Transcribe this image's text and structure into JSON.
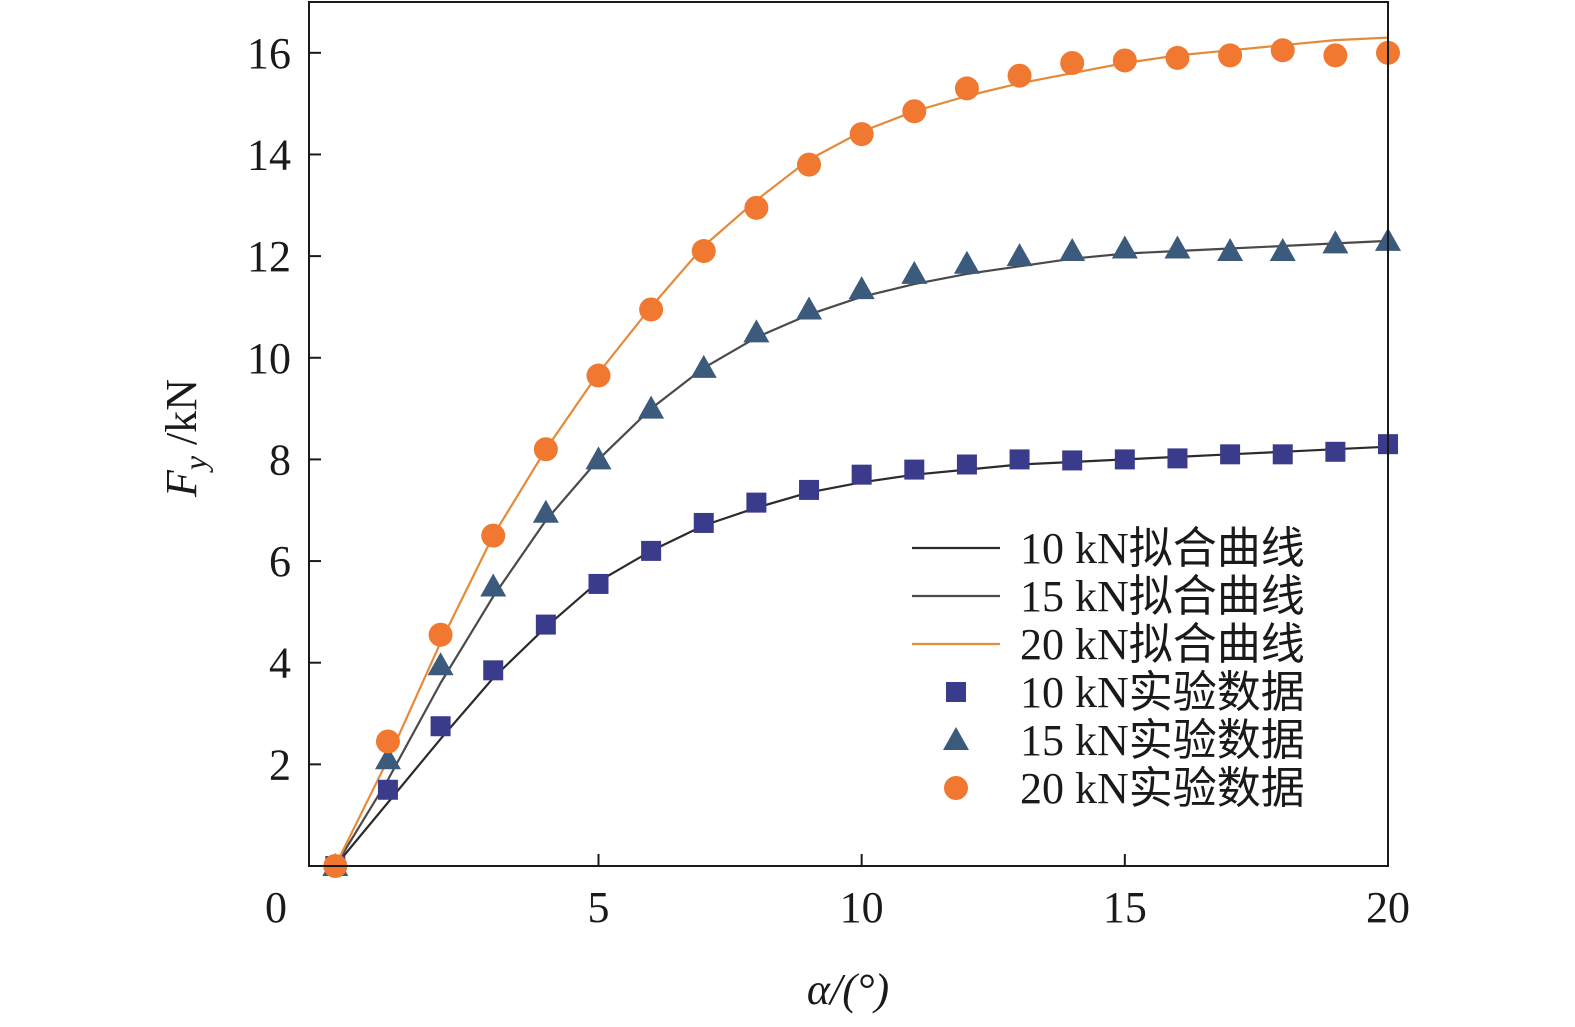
{
  "chart_data": {
    "type": "line",
    "xlabel": "α/(°)",
    "ylabel": {
      "main": "F",
      "sub": "y",
      "unit": " /kN"
    },
    "xlim": [
      0,
      20
    ],
    "ylim": [
      0,
      17
    ],
    "xticks": [
      0,
      5,
      10,
      15,
      20
    ],
    "yticks": [
      2,
      4,
      6,
      8,
      10,
      12,
      14,
      16
    ],
    "x_origin_label": "0",
    "grid": false,
    "legend_position": "bottom-right",
    "x": [
      0,
      1,
      2,
      3,
      4,
      5,
      6,
      7,
      8,
      9,
      10,
      11,
      12,
      13,
      14,
      15,
      16,
      17,
      18,
      19,
      20
    ],
    "series": [
      {
        "name": "10 kN拟合曲线",
        "kind": "line",
        "color": "#2b2b2b",
        "values": [
          0,
          1.25,
          2.5,
          3.7,
          4.7,
          5.6,
          6.2,
          6.7,
          7.05,
          7.35,
          7.55,
          7.7,
          7.8,
          7.9,
          7.95,
          8.0,
          8.05,
          8.1,
          8.15,
          8.2,
          8.25
        ]
      },
      {
        "name": "15 kN拟合曲线",
        "kind": "line",
        "color": "#4a4a4a",
        "values": [
          0,
          1.7,
          3.6,
          5.3,
          6.8,
          8.0,
          9.0,
          9.8,
          10.4,
          10.85,
          11.2,
          11.45,
          11.65,
          11.8,
          11.95,
          12.05,
          12.1,
          12.15,
          12.2,
          12.25,
          12.3
        ]
      },
      {
        "name": "20 kN拟合曲线",
        "kind": "line",
        "color": "#e58a3a",
        "values": [
          0,
          2.1,
          4.4,
          6.5,
          8.2,
          9.7,
          11.0,
          12.2,
          13.1,
          13.9,
          14.45,
          14.85,
          15.15,
          15.4,
          15.6,
          15.8,
          15.95,
          16.05,
          16.15,
          16.25,
          16.3
        ]
      },
      {
        "name": "10 kN实验数据",
        "kind": "scatter",
        "marker": "square",
        "color": "#3b3b8c",
        "values": [
          0,
          1.5,
          2.75,
          3.85,
          4.75,
          5.55,
          6.2,
          6.75,
          7.15,
          7.4,
          7.7,
          7.8,
          7.9,
          8.0,
          7.98,
          8.0,
          8.02,
          8.1,
          8.1,
          8.15,
          8.3
        ]
      },
      {
        "name": "15 kN实验数据",
        "kind": "scatter",
        "marker": "triangle",
        "color": "#3b5a7c",
        "values": [
          0,
          2.1,
          3.95,
          5.5,
          6.95,
          8.0,
          9.0,
          9.8,
          10.5,
          10.95,
          11.35,
          11.65,
          11.85,
          12.0,
          12.1,
          12.15,
          12.15,
          12.1,
          12.1,
          12.25,
          12.3
        ]
      },
      {
        "name": "20 kN实验数据",
        "kind": "scatter",
        "marker": "circle",
        "color": "#f07830",
        "values": [
          0,
          2.45,
          4.55,
          6.5,
          8.2,
          9.65,
          10.95,
          12.1,
          12.95,
          13.8,
          14.4,
          14.85,
          15.3,
          15.55,
          15.8,
          15.85,
          15.9,
          15.95,
          16.05,
          15.95,
          16.0
        ]
      }
    ]
  }
}
